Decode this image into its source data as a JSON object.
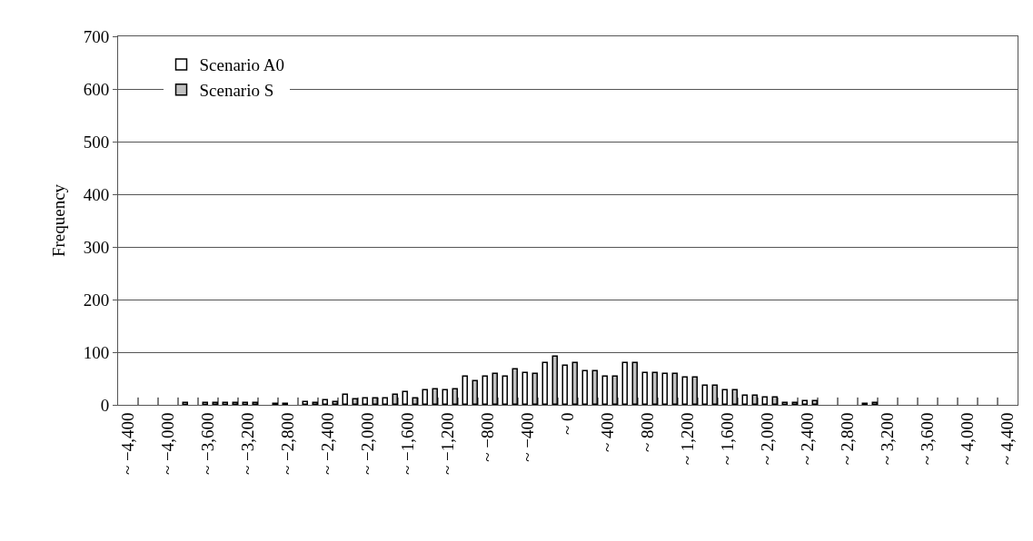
{
  "chart_data": {
    "type": "bar",
    "ylabel": "Frequency",
    "categories": [
      "~ −4,400",
      null,
      "~ −4,000",
      null,
      "~ −3,600",
      null,
      "~ −3,200",
      null,
      "~ −2,800",
      null,
      "~ −2,400",
      null,
      "~ −2,000",
      null,
      "~ −1,600",
      null,
      "~ −1,200",
      null,
      "~ −800",
      null,
      "~ −400",
      null,
      "~ 0",
      null,
      "~ 400",
      null,
      "~ 800",
      null,
      "~ 1,200",
      null,
      "~ 1,600",
      null,
      "~ 2,000",
      null,
      "~ 2,400",
      null,
      "~ 2,800",
      null,
      "~ 3,200",
      null,
      "~ 3,600",
      null,
      "~ 4,000",
      null,
      "~ 4,400"
    ],
    "series": [
      {
        "name": "Scenario A0",
        "color": "#ffffff",
        "values": [
          0,
          0,
          0,
          3,
          3,
          3,
          3,
          0,
          2,
          6,
          9,
          19,
          12,
          12,
          25,
          27,
          27,
          54,
          54,
          54,
          60,
          80,
          74,
          64,
          54,
          80,
          60,
          58,
          51,
          37,
          27,
          17,
          13,
          3,
          7,
          0,
          0,
          2,
          0,
          0,
          0,
          0,
          0,
          0,
          0
        ]
      },
      {
        "name": "Scenario S",
        "color": "#c0c0c0",
        "values": [
          0,
          0,
          0,
          0,
          3,
          3,
          3,
          2,
          0,
          3,
          6,
          10,
          12,
          19,
          12,
          30,
          30,
          44,
          58,
          67,
          58,
          91,
          80,
          64,
          54,
          80,
          60,
          58,
          51,
          37,
          27,
          17,
          13,
          3,
          7,
          0,
          0,
          3,
          0,
          0,
          0,
          0,
          0,
          0,
          0
        ]
      }
    ],
    "ylim": [
      0,
      700
    ],
    "yticks": [
      0,
      100,
      200,
      300,
      400,
      500,
      600,
      700
    ],
    "grid": "y",
    "legend": "top left"
  }
}
